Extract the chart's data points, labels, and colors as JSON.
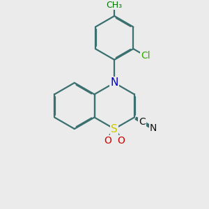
{
  "bg_color": "#ebebeb",
  "bond_color": "#3a7070",
  "bond_lw": 1.6,
  "dbo": 0.042,
  "atom_colors": {
    "S": "#cccc00",
    "N": "#0000cc",
    "O": "#cc0000",
    "Cl": "#33aa00",
    "C": "#111111",
    "CH3": "#007700"
  },
  "fs": {
    "S": 11,
    "N": 11,
    "O": 10,
    "Cl": 10,
    "C": 10,
    "CH3": 9
  }
}
